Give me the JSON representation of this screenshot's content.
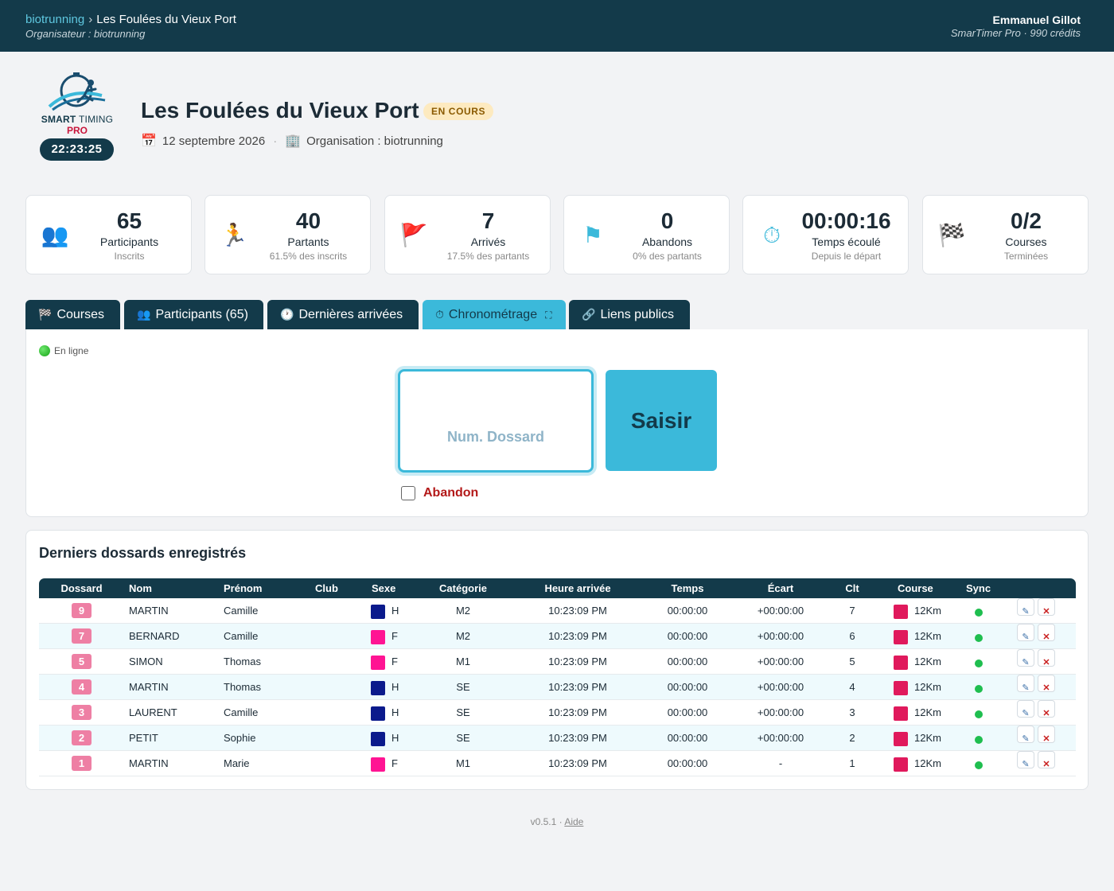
{
  "topbar": {
    "org_link": "biotrunning",
    "separator": "›",
    "event_name": "Les Foulées du Vieux Port",
    "organizer": "Organisateur : biotrunning",
    "user_name": "Emmanuel Gillot",
    "plan": "SmarTimer Pro · 990 crédits"
  },
  "logo": {
    "brand_bold": "SMART",
    "brand_thin": "TIMING",
    "brand_pro": "PRO",
    "clock_display": "22:23:25"
  },
  "header": {
    "title": "Les Foulées du Vieux Port",
    "status": "EN COURS",
    "date_icon": "📅",
    "date": "12 septembre 2026",
    "dot": "·",
    "org_icon": "🏢",
    "organisation": "Organisation : biotrunning"
  },
  "stats": [
    {
      "icon": "participants-icon",
      "glyph": "👥",
      "value": "65",
      "label": "Participants",
      "sub": "Inscrits"
    },
    {
      "icon": "runner-icon",
      "glyph": "🏃",
      "value": "40",
      "label": "Partants",
      "sub": "61.5% des inscrits"
    },
    {
      "icon": "red-flag-icon",
      "glyph": "🚩",
      "value": "7",
      "label": "Arrivés",
      "sub": "17.5% des partants"
    },
    {
      "icon": "blue-flag-icon",
      "glyph": "⚑",
      "value": "0",
      "label": "Abandons",
      "sub": "0% des partants"
    },
    {
      "icon": "stopwatch-icon",
      "glyph": "⏱",
      "value": "00:00:16",
      "label": "Temps écoulé",
      "sub": "Depuis le départ"
    },
    {
      "icon": "checkered-flag-icon",
      "glyph": "🏁",
      "value": "0/2",
      "label": "Courses",
      "sub": "Terminées"
    }
  ],
  "tabs": [
    {
      "icon": "🏁",
      "label": "Courses",
      "active": false
    },
    {
      "icon": "👥",
      "label": "Participants (65)",
      "active": false
    },
    {
      "icon": "🕐",
      "label": "Dernières arrivées",
      "active": false
    },
    {
      "icon": "⏱",
      "label": "Chronométrage",
      "active": true,
      "expand": "⛶"
    },
    {
      "icon": "🔗",
      "label": "Liens publics",
      "active": false
    }
  ],
  "chrono": {
    "status": "En ligne",
    "bib_placeholder": "Num. Dossard",
    "bib_value": "",
    "submit_label": "Saisir",
    "abandon_label": "Abandon",
    "abandon_checked": false
  },
  "results": {
    "title": "Derniers dossards enregistrés",
    "columns": [
      "Dossard",
      "Nom",
      "Prénom",
      "Club",
      "Sexe",
      "Catégorie",
      "Heure arrivée",
      "Temps",
      "Écart",
      "Clt",
      "Course",
      "Sync"
    ],
    "rows": [
      {
        "bib": "9",
        "nom": "MARTIN",
        "prenom": "Camille",
        "club": "",
        "sexe": "H",
        "cat": "M2",
        "heure": "10:23:09 PM",
        "temps": "00:00:00",
        "ecart": "+00:00:00",
        "clt": "7",
        "course": "12Km"
      },
      {
        "bib": "7",
        "nom": "BERNARD",
        "prenom": "Camille",
        "club": "",
        "sexe": "F",
        "cat": "M2",
        "heure": "10:23:09 PM",
        "temps": "00:00:00",
        "ecart": "+00:00:00",
        "clt": "6",
        "course": "12Km"
      },
      {
        "bib": "5",
        "nom": "SIMON",
        "prenom": "Thomas",
        "club": "",
        "sexe": "F",
        "cat": "M1",
        "heure": "10:23:09 PM",
        "temps": "00:00:00",
        "ecart": "+00:00:00",
        "clt": "5",
        "course": "12Km"
      },
      {
        "bib": "4",
        "nom": "MARTIN",
        "prenom": "Thomas",
        "club": "",
        "sexe": "H",
        "cat": "SE",
        "heure": "10:23:09 PM",
        "temps": "00:00:00",
        "ecart": "+00:00:00",
        "clt": "4",
        "course": "12Km"
      },
      {
        "bib": "3",
        "nom": "LAURENT",
        "prenom": "Camille",
        "club": "",
        "sexe": "H",
        "cat": "SE",
        "heure": "10:23:09 PM",
        "temps": "00:00:00",
        "ecart": "+00:00:00",
        "clt": "3",
        "course": "12Km"
      },
      {
        "bib": "2",
        "nom": "PETIT",
        "prenom": "Sophie",
        "club": "",
        "sexe": "H",
        "cat": "SE",
        "heure": "10:23:09 PM",
        "temps": "00:00:00",
        "ecart": "+00:00:00",
        "clt": "2",
        "course": "12Km"
      },
      {
        "bib": "1",
        "nom": "MARTIN",
        "prenom": "Marie",
        "club": "",
        "sexe": "F",
        "cat": "M1",
        "heure": "10:23:09 PM",
        "temps": "00:00:00",
        "ecart": "-",
        "clt": "1",
        "course": "12Km"
      }
    ],
    "edit_glyph": "✎",
    "delete_glyph": "✕"
  },
  "footer": {
    "version": "v0.5.1 ·",
    "help": "Aide"
  },
  "colors": {
    "navy": "#133a4a",
    "accent": "#3bb9da",
    "bib_pink": "#ee7fa4",
    "sex_h": "#0b1a8c",
    "sex_f": "#ff1493",
    "course_12km": "#e0195c",
    "sync_ok": "#1fbe4f",
    "abandon_red": "#b31919"
  }
}
